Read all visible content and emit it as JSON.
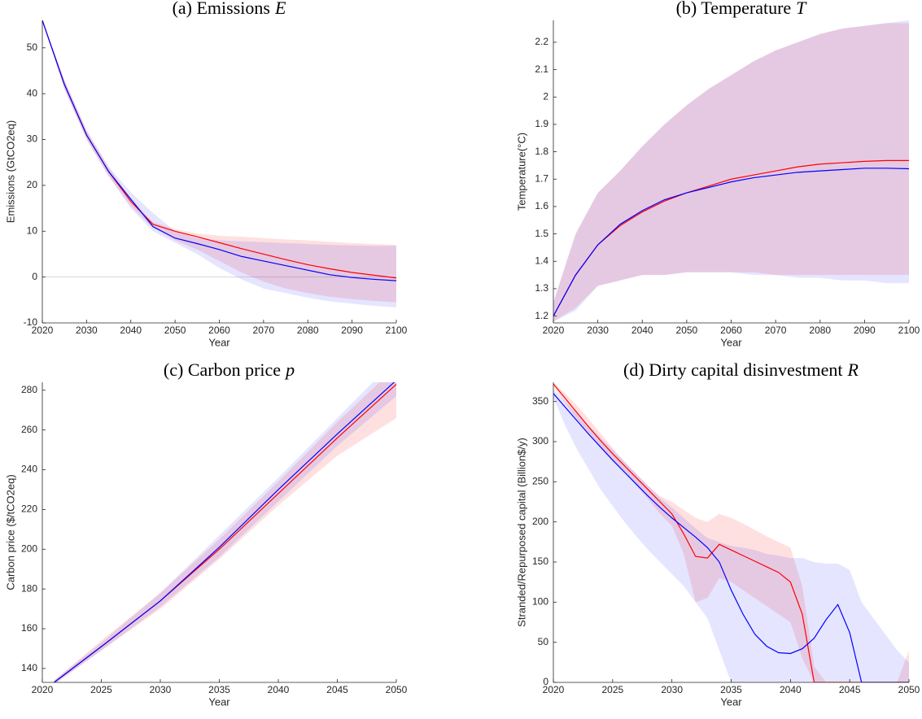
{
  "chart_data": [
    {
      "type": "line",
      "title": "(a) Emissions",
      "title_symbol": "E",
      "xlabel": "Year",
      "ylabel": "Emissions (GtCO2eq)",
      "x": [
        2020,
        2025,
        2030,
        2035,
        2040,
        2045,
        2050,
        2055,
        2060,
        2065,
        2070,
        2075,
        2080,
        2085,
        2090,
        2095,
        2100
      ],
      "xlim": [
        2020,
        2100
      ],
      "xticks": [
        2020,
        2030,
        2040,
        2050,
        2060,
        2070,
        2080,
        2090,
        2100
      ],
      "ylim": [
        -10,
        56
      ],
      "yticks": [
        -10,
        0,
        10,
        20,
        30,
        40,
        50
      ],
      "reference_line": 0,
      "bands": [
        {
          "color": "#ff0000",
          "alpha": 0.12,
          "upper": [
            56,
            43,
            32,
            24,
            17,
            12,
            10.5,
            9.5,
            9,
            8.8,
            8.5,
            8.2,
            8,
            7.7,
            7.4,
            7.2,
            7
          ],
          "lower": [
            56,
            41,
            30,
            22,
            15.5,
            10.8,
            8,
            6,
            3.5,
            1,
            -1,
            -2.5,
            -3.5,
            -4.3,
            -4.8,
            -5.2,
            -5.5
          ]
        },
        {
          "color": "#0000ff",
          "alpha": 0.1,
          "upper": [
            56,
            43,
            32,
            24,
            18.5,
            14,
            10,
            8.5,
            8,
            7.8,
            7.6,
            7.4,
            7.2,
            7,
            6.9,
            6.8,
            6.8
          ],
          "lower": [
            56,
            41,
            30,
            22,
            15,
            10,
            7.5,
            5,
            2,
            -0.5,
            -2.5,
            -3.5,
            -4.5,
            -5.3,
            -5.8,
            -6.3,
            -6.6
          ]
        }
      ],
      "series": [
        {
          "color": "#ff0000",
          "values": [
            56,
            42,
            31,
            23,
            16.5,
            11.5,
            10,
            8.8,
            7.5,
            6.2,
            5,
            3.8,
            2.7,
            1.8,
            1,
            0.4,
            -0.2
          ]
        },
        {
          "color": "#0000ff",
          "values": [
            56,
            42,
            31,
            23,
            17,
            11,
            8.5,
            7.3,
            6,
            4.5,
            3.5,
            2.5,
            1.5,
            0.5,
            -0.1,
            -0.5,
            -0.8
          ]
        }
      ]
    },
    {
      "type": "line",
      "title": "(b) Temperature",
      "title_symbol": "T",
      "xlabel": "Year",
      "ylabel": "Temperature(°C)",
      "x": [
        2020,
        2025,
        2030,
        2035,
        2040,
        2045,
        2050,
        2055,
        2060,
        2065,
        2070,
        2075,
        2080,
        2085,
        2090,
        2095,
        2100
      ],
      "xlim": [
        2020,
        2100
      ],
      "xticks": [
        2020,
        2030,
        2040,
        2050,
        2060,
        2070,
        2080,
        2090,
        2100
      ],
      "ylim": [
        1.175,
        2.28
      ],
      "yticks": [
        1.2,
        1.3,
        1.4,
        1.5,
        1.6,
        1.7,
        1.8,
        1.9,
        2,
        2.1,
        2.2
      ],
      "bands": [
        {
          "color": "#ff0000",
          "alpha": 0.12,
          "upper": [
            1.25,
            1.5,
            1.65,
            1.73,
            1.82,
            1.9,
            1.97,
            2.03,
            2.08,
            2.13,
            2.17,
            2.2,
            2.23,
            2.25,
            2.26,
            2.27,
            2.27
          ],
          "lower": [
            1.18,
            1.23,
            1.31,
            1.33,
            1.35,
            1.35,
            1.36,
            1.36,
            1.36,
            1.36,
            1.35,
            1.35,
            1.35,
            1.35,
            1.35,
            1.35,
            1.35
          ]
        },
        {
          "color": "#0000ff",
          "alpha": 0.1,
          "upper": [
            1.25,
            1.5,
            1.65,
            1.73,
            1.82,
            1.9,
            1.97,
            2.03,
            2.08,
            2.13,
            2.17,
            2.2,
            2.23,
            2.25,
            2.26,
            2.27,
            2.28
          ],
          "lower": [
            1.18,
            1.22,
            1.31,
            1.33,
            1.35,
            1.35,
            1.36,
            1.36,
            1.36,
            1.35,
            1.35,
            1.34,
            1.34,
            1.33,
            1.33,
            1.32,
            1.32
          ]
        }
      ],
      "series": [
        {
          "color": "#ff0000",
          "values": [
            1.2,
            1.35,
            1.46,
            1.53,
            1.58,
            1.62,
            1.65,
            1.675,
            1.7,
            1.715,
            1.73,
            1.745,
            1.755,
            1.76,
            1.765,
            1.768,
            1.768
          ]
        },
        {
          "color": "#0000ff",
          "values": [
            1.2,
            1.35,
            1.46,
            1.535,
            1.585,
            1.625,
            1.65,
            1.67,
            1.69,
            1.705,
            1.715,
            1.725,
            1.73,
            1.735,
            1.74,
            1.74,
            1.738
          ]
        }
      ]
    },
    {
      "type": "line",
      "title": "(c) Carbon price",
      "title_symbol": "p",
      "xlabel": "Year",
      "ylabel": "Carbon price ($/tCO2eq)",
      "x": [
        2021,
        2025,
        2030,
        2035,
        2040,
        2045,
        2050
      ],
      "xlim": [
        2020,
        2050
      ],
      "xticks": [
        2020,
        2025,
        2030,
        2035,
        2040,
        2045,
        2050
      ],
      "ylim": [
        133,
        284
      ],
      "yticks": [
        140,
        160,
        180,
        200,
        220,
        240,
        260,
        280
      ],
      "bands": [
        {
          "color": "#ff0000",
          "alpha": 0.12,
          "upper": [
            134,
            154,
            178,
            205,
            234,
            264,
            292
          ],
          "lower": [
            132,
            149,
            170,
            195,
            222,
            247,
            266
          ]
        },
        {
          "color": "#0000ff",
          "alpha": 0.1,
          "upper": [
            134,
            153,
            178,
            207,
            236,
            266,
            296
          ],
          "lower": [
            132,
            149,
            171,
            196,
            224,
            252,
            277
          ]
        }
      ],
      "series": [
        {
          "color": "#ff0000",
          "values": [
            133,
            151,
            174,
            200,
            228,
            256,
            283
          ]
        },
        {
          "color": "#0000ff",
          "values": [
            133,
            151,
            174,
            201,
            230,
            258,
            285
          ]
        }
      ]
    },
    {
      "type": "line",
      "title": "(d) Dirty capital disinvestment",
      "title_symbol": "R",
      "xlabel": "Year",
      "ylabel": "Stranded/Repurposed capital (Billion$/y)",
      "x": [
        2020,
        2021,
        2022,
        2023,
        2024,
        2025,
        2026,
        2027,
        2028,
        2029,
        2030,
        2031,
        2032,
        2033,
        2034,
        2035,
        2036,
        2037,
        2038,
        2039,
        2040,
        2041,
        2042,
        2043,
        2044,
        2045,
        2046,
        2047,
        2048,
        2049,
        2050
      ],
      "xlim": [
        2020,
        2050
      ],
      "xticks": [
        2020,
        2025,
        2030,
        2035,
        2040,
        2045,
        2050
      ],
      "ylim": [
        0,
        374
      ],
      "yticks": [
        0,
        50,
        100,
        150,
        200,
        250,
        300,
        350
      ],
      "bands": [
        {
          "color": "#ff0000",
          "alpha": 0.12,
          "upper": [
            374,
            360,
            345,
            328,
            310,
            292,
            275,
            260,
            245,
            232,
            225,
            215,
            205,
            200,
            210,
            205,
            198,
            190,
            182,
            175,
            168,
            120,
            20,
            0,
            0,
            0,
            0,
            0,
            0,
            0,
            40
          ],
          "lower": [
            368,
            348,
            328,
            310,
            293,
            277,
            262,
            245,
            228,
            210,
            195,
            160,
            100,
            105,
            130,
            125,
            115,
            105,
            95,
            85,
            75,
            30,
            0,
            0,
            0,
            0,
            0,
            0,
            0,
            0,
            0
          ]
        },
        {
          "color": "#0000ff",
          "alpha": 0.1,
          "upper": [
            365,
            350,
            335,
            320,
            305,
            290,
            275,
            260,
            245,
            230,
            218,
            205,
            192,
            180,
            175,
            170,
            168,
            165,
            160,
            158,
            155,
            155,
            150,
            148,
            148,
            140,
            100,
            80,
            60,
            40,
            25
          ],
          "lower": [
            355,
            320,
            290,
            265,
            240,
            220,
            200,
            182,
            165,
            150,
            135,
            120,
            100,
            80,
            40,
            0,
            0,
            0,
            0,
            0,
            0,
            0,
            0,
            0,
            0,
            0,
            0,
            0,
            0,
            0,
            0
          ]
        }
      ],
      "series": [
        {
          "color": "#ff0000",
          "values": [
            372,
            354,
            336,
            318,
            301,
            285,
            270,
            255,
            240,
            225,
            210,
            185,
            157,
            155,
            172,
            165,
            158,
            151,
            144,
            137,
            125,
            85,
            0,
            0,
            0,
            0,
            0,
            0,
            0,
            0,
            0
          ]
        },
        {
          "color": "#0000ff",
          "values": [
            360,
            343,
            326,
            309,
            293,
            277,
            262,
            247,
            232,
            218,
            205,
            193,
            181,
            168,
            150,
            115,
            85,
            60,
            45,
            37,
            36,
            42,
            55,
            78,
            97,
            62,
            0,
            0,
            0,
            0,
            0
          ]
        }
      ]
    }
  ]
}
